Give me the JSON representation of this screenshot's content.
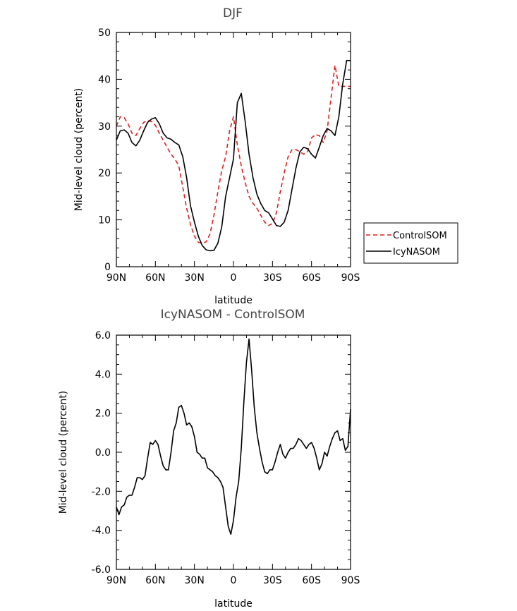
{
  "chart_data": [
    {
      "type": "line",
      "title": "DJF",
      "xlabel": "latitude",
      "ylabel": "Mid-level cloud (percent)",
      "xlim": [
        90,
        -90
      ],
      "ylim": [
        0,
        50
      ],
      "xticks": [
        90,
        60,
        30,
        0,
        -30,
        -60,
        -90
      ],
      "xtick_labels": [
        "90N",
        "60N",
        "30N",
        "0",
        "30S",
        "60S",
        "90S"
      ],
      "yticks": [
        0,
        10,
        20,
        30,
        40,
        50
      ],
      "ytick_labels": [
        "0",
        "10",
        "20",
        "30",
        "40",
        "50"
      ],
      "legend": "outside-right",
      "grid": false,
      "x": [
        90,
        87,
        84,
        81,
        78,
        75,
        72,
        69,
        66,
        63,
        60,
        57,
        54,
        51,
        48,
        45,
        42,
        39,
        36,
        33,
        30,
        27,
        24,
        21,
        18,
        15,
        12,
        9,
        6,
        3,
        0,
        -3,
        -6,
        -9,
        -12,
        -15,
        -18,
        -21,
        -24,
        -27,
        -30,
        -33,
        -36,
        -39,
        -42,
        -45,
        -48,
        -51,
        -54,
        -57,
        -60,
        -63,
        -66,
        -69,
        -72,
        -75,
        -78,
        -81,
        -84,
        -87,
        -90
      ],
      "series": [
        {
          "name": "ControlSOM",
          "color": "#e0201b",
          "dash": "dashed",
          "values": [
            30.0,
            32.0,
            31.8,
            30.5,
            28.5,
            28.0,
            29.5,
            30.8,
            31.2,
            31.0,
            30.2,
            28.5,
            27.0,
            25.5,
            24.0,
            23.0,
            21.5,
            17.0,
            12.5,
            9.0,
            6.5,
            5.2,
            5.0,
            5.3,
            7.0,
            11.0,
            16.0,
            20.5,
            23.5,
            29.0,
            32.0,
            26.0,
            21.5,
            18.0,
            15.0,
            13.5,
            12.5,
            11.0,
            9.5,
            8.8,
            9.2,
            11.5,
            16.0,
            20.0,
            23.5,
            25.0,
            25.0,
            24.5,
            24.0,
            24.5,
            27.5,
            28.2,
            28.0,
            26.5,
            29.0,
            36.0,
            43.0,
            38.5,
            38.5,
            38.5,
            38.5
          ]
        },
        {
          "name": "IcyNASOM",
          "color": "#000000",
          "dash": "solid",
          "values": [
            27.0,
            29.0,
            29.2,
            28.5,
            26.5,
            25.8,
            27.0,
            29.0,
            30.8,
            31.5,
            31.8,
            30.5,
            28.5,
            27.5,
            27.2,
            26.5,
            26.0,
            23.5,
            19.0,
            13.0,
            9.5,
            6.5,
            4.5,
            3.6,
            3.4,
            3.5,
            5.0,
            8.5,
            15.0,
            19.0,
            23.0,
            35.0,
            37.0,
            31.0,
            24.0,
            19.0,
            15.5,
            13.5,
            12.0,
            11.5,
            10.2,
            8.8,
            8.6,
            9.5,
            12.0,
            16.5,
            21.0,
            24.5,
            25.5,
            25.2,
            24.0,
            23.2,
            25.5,
            28.0,
            29.5,
            29.0,
            28.0,
            32.0,
            39.0,
            44.0,
            44.0
          ]
        }
      ]
    },
    {
      "type": "line",
      "title": "IcyNASOM - ControlSOM",
      "xlabel": "latitude",
      "ylabel": "Mid-level cloud (percent)",
      "xlim": [
        90,
        -90
      ],
      "ylim": [
        -6,
        6
      ],
      "xticks": [
        90,
        60,
        30,
        0,
        -30,
        -60,
        -90
      ],
      "xtick_labels": [
        "90N",
        "60N",
        "30N",
        "0",
        "30S",
        "60S",
        "90S"
      ],
      "yticks": [
        -6,
        -4,
        -2,
        0,
        2,
        4,
        6
      ],
      "ytick_labels": [
        "-6.0",
        "-4.0",
        "-2.0",
        "0.0",
        "2.0",
        "4.0",
        "6.0"
      ],
      "grid": false,
      "x": [
        90,
        88,
        86,
        84,
        82,
        80,
        78,
        76,
        74,
        72,
        70,
        68,
        66,
        64,
        62,
        60,
        58,
        56,
        54,
        52,
        50,
        48,
        46,
        44,
        42,
        40,
        38,
        36,
        34,
        32,
        30,
        28,
        26,
        24,
        22,
        20,
        18,
        16,
        14,
        12,
        10,
        8,
        6,
        4,
        2,
        0,
        -2,
        -4,
        -6,
        -8,
        -10,
        -12,
        -14,
        -16,
        -18,
        -20,
        -22,
        -24,
        -26,
        -28,
        -30,
        -32,
        -34,
        -36,
        -38,
        -40,
        -42,
        -44,
        -46,
        -48,
        -50,
        -52,
        -54,
        -56,
        -58,
        -60,
        -62,
        -64,
        -66,
        -68,
        -70,
        -72,
        -74,
        -76,
        -78,
        -80,
        -82,
        -84,
        -86,
        -88,
        -90
      ],
      "series": [
        {
          "name": "",
          "color": "#000000",
          "dash": "solid",
          "values": [
            -2.8,
            -3.2,
            -2.8,
            -2.7,
            -2.3,
            -2.2,
            -2.2,
            -1.8,
            -1.3,
            -1.3,
            -1.4,
            -1.2,
            -0.3,
            0.5,
            0.4,
            0.6,
            0.4,
            -0.2,
            -0.7,
            -0.9,
            -0.9,
            0.0,
            1.1,
            1.5,
            2.3,
            2.4,
            2.0,
            1.4,
            1.5,
            1.3,
            0.8,
            0.0,
            -0.1,
            -0.3,
            -0.3,
            -0.8,
            -0.9,
            -1.0,
            -1.2,
            -1.3,
            -1.5,
            -1.8,
            -2.8,
            -3.8,
            -4.2,
            -3.5,
            -2.3,
            -1.5,
            0.2,
            2.6,
            4.6,
            5.8,
            4.2,
            2.3,
            1.0,
            0.2,
            -0.5,
            -1.0,
            -1.1,
            -0.9,
            -0.9,
            -0.5,
            0.0,
            0.4,
            -0.1,
            -0.3,
            0.0,
            0.2,
            0.2,
            0.4,
            0.7,
            0.6,
            0.4,
            0.2,
            0.4,
            0.5,
            0.2,
            -0.3,
            -0.9,
            -0.6,
            0.0,
            -0.2,
            0.3,
            0.7,
            1.0,
            1.1,
            0.6,
            0.7,
            0.1,
            0.3,
            2.2
          ]
        }
      ]
    }
  ]
}
